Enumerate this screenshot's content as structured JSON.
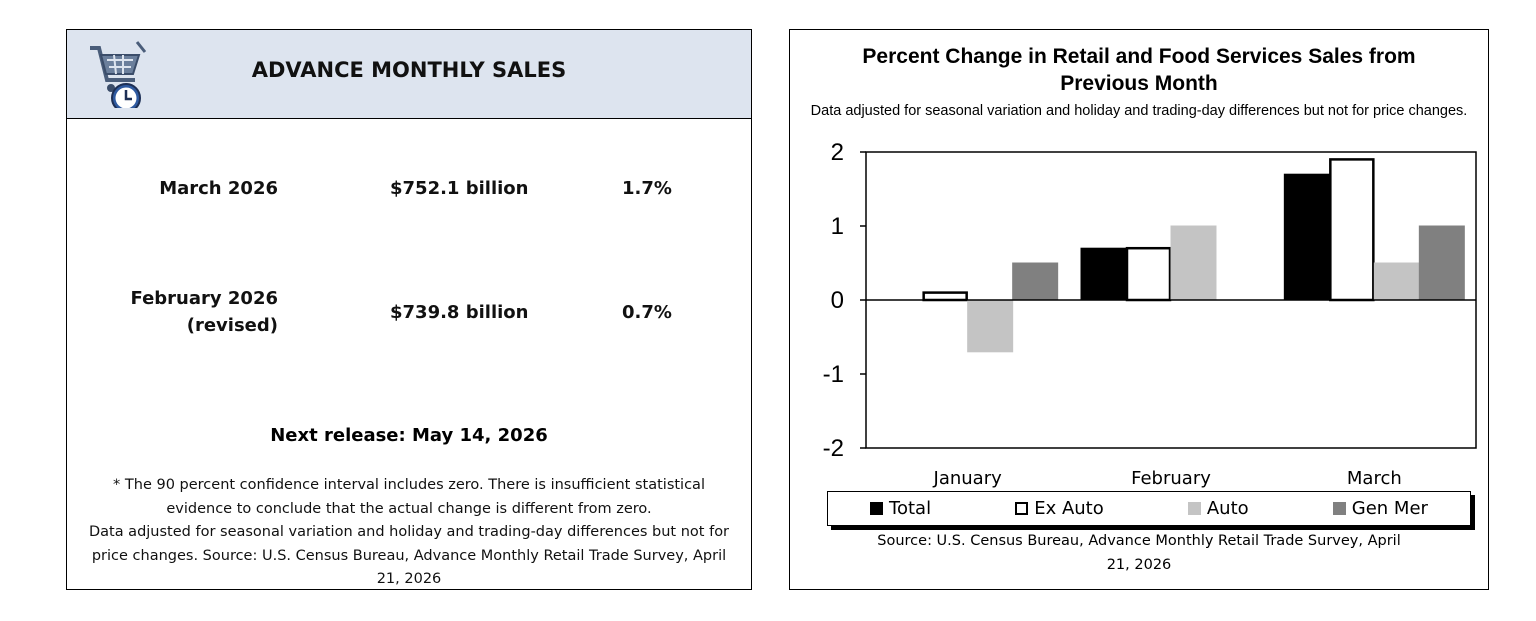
{
  "summary": {
    "title": "ADVANCE MONTHLY SALES",
    "rows": [
      {
        "period": "March 2026",
        "period_note": "",
        "value": "$752.1 billion",
        "change": "1.7%"
      },
      {
        "period": "February 2026",
        "period_note": "(revised)",
        "value": "$739.8 billion",
        "change": "0.7%"
      }
    ],
    "next_release": "Next release: May 14, 2026",
    "note_1": "* The 90 percent confidence interval includes zero. There is insufficient statistical evidence to conclude that the actual change is different from zero.",
    "note_2": "Data adjusted for seasonal variation and holiday and trading-day differences but not for price changes. Source: U.S. Census Bureau, Advance Monthly Retail Trade Survey, April 21, 2026"
  },
  "chart_data": {
    "type": "bar",
    "title": "Percent Change in Retail and Food Services Sales from Previous Month",
    "subtitle": "Data adjusted for seasonal variation and holiday and trading-day differences but not for price changes.",
    "categories": [
      "January",
      "February",
      "March"
    ],
    "series": [
      {
        "name": "Total",
        "values": [
          0.0,
          0.7,
          1.7
        ],
        "fill": "#000000",
        "stroke": "#000000"
      },
      {
        "name": "Ex Auto",
        "values": [
          0.1,
          0.7,
          1.9
        ],
        "fill": "#ffffff",
        "stroke": "#000000"
      },
      {
        "name": "Auto",
        "values": [
          -0.7,
          1.0,
          0.5
        ],
        "fill": "#c4c4c4",
        "stroke": "#c4c4c4"
      },
      {
        "name": "Gen Mer",
        "values": [
          0.5,
          0.0,
          1.0
        ],
        "fill": "#808080",
        "stroke": "#808080"
      }
    ],
    "ylim": [
      -2,
      2
    ],
    "yticks": [
      "2",
      "1",
      "0",
      "-1",
      "-2"
    ],
    "xlabel": "",
    "ylabel": "",
    "grid": false,
    "legend_position": "bottom",
    "source": "Source: U.S. Census Bureau, Advance Monthly Retail Trade Survey, April 21, 2026"
  }
}
